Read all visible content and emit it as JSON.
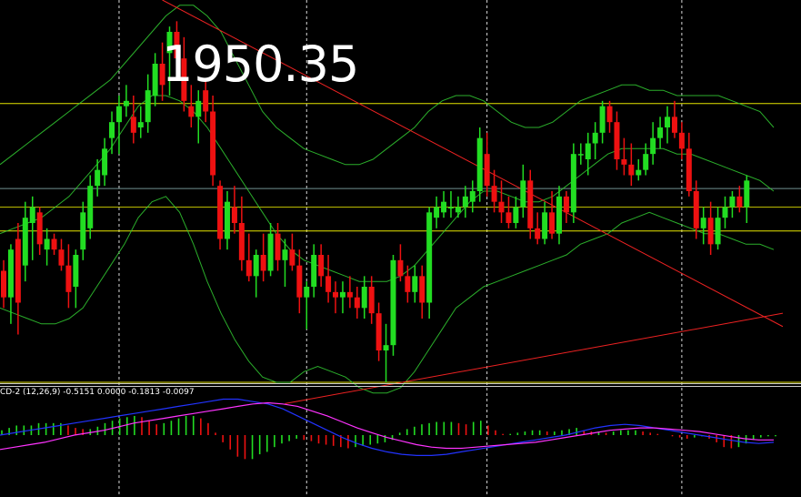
{
  "price_label": "1950.35",
  "indicator_label": "CD-2 (12,26,9) -0.5151 0.0000 -0.1813 -0.0097",
  "colors": {
    "background": "#000000",
    "bull": "#22dd22",
    "bear": "#ee1111",
    "band": "#33cc33",
    "level": "#e6e600",
    "pivot": "#6f8f8f",
    "trend": "#ee2222",
    "macd_main": "#2233ff",
    "macd_signal": "#ff33ff",
    "vgrid": "#ffffff",
    "separator": "#cccccc"
  },
  "chart_data": {
    "type": "candlestick",
    "title": "",
    "grid": false,
    "vertical_gridlines": true,
    "price_range": [
      1884,
      1956
    ],
    "candles": [
      {
        "o": 1905,
        "h": 1907,
        "l": 1898,
        "c": 1900
      },
      {
        "o": 1900,
        "h": 1910,
        "l": 1895,
        "c": 1909
      },
      {
        "o": 1911,
        "h": 1914,
        "l": 1893,
        "c": 1899
      },
      {
        "o": 1906,
        "h": 1918,
        "l": 1903,
        "c": 1915
      },
      {
        "o": 1914,
        "h": 1919,
        "l": 1907,
        "c": 1917
      },
      {
        "o": 1916,
        "h": 1917,
        "l": 1908,
        "c": 1910
      },
      {
        "o": 1909,
        "h": 1913,
        "l": 1906,
        "c": 1911
      },
      {
        "o": 1911,
        "h": 1912,
        "l": 1908,
        "c": 1909
      },
      {
        "o": 1909,
        "h": 1911,
        "l": 1905,
        "c": 1906
      },
      {
        "o": 1906,
        "h": 1910,
        "l": 1898,
        "c": 1901
      },
      {
        "o": 1902,
        "h": 1909,
        "l": 1898,
        "c": 1908
      },
      {
        "o": 1909,
        "h": 1918,
        "l": 1907,
        "c": 1916
      },
      {
        "o": 1913,
        "h": 1923,
        "l": 1911,
        "c": 1921
      },
      {
        "o": 1921,
        "h": 1926,
        "l": 1919,
        "c": 1924
      },
      {
        "o": 1923,
        "h": 1930,
        "l": 1921,
        "c": 1928
      },
      {
        "o": 1930,
        "h": 1935,
        "l": 1927,
        "c": 1933
      },
      {
        "o": 1933,
        "h": 1938,
        "l": 1927,
        "c": 1936
      },
      {
        "o": 1936,
        "h": 1940,
        "l": 1934,
        "c": 1937
      },
      {
        "o": 1934,
        "h": 1938,
        "l": 1929,
        "c": 1931
      },
      {
        "o": 1932,
        "h": 1936,
        "l": 1930,
        "c": 1933
      },
      {
        "o": 1933,
        "h": 1942,
        "l": 1931,
        "c": 1939
      },
      {
        "o": 1938,
        "h": 1946,
        "l": 1936,
        "c": 1944
      },
      {
        "o": 1944,
        "h": 1948,
        "l": 1937,
        "c": 1940
      },
      {
        "o": 1946,
        "h": 1951,
        "l": 1938,
        "c": 1950
      },
      {
        "o": 1950,
        "h": 1952,
        "l": 1943,
        "c": 1945
      },
      {
        "o": 1945,
        "h": 1949,
        "l": 1935,
        "c": 1937
      },
      {
        "o": 1936,
        "h": 1940,
        "l": 1932,
        "c": 1934
      },
      {
        "o": 1934,
        "h": 1939,
        "l": 1929,
        "c": 1937
      },
      {
        "o": 1939,
        "h": 1941,
        "l": 1933,
        "c": 1935
      },
      {
        "o": 1935,
        "h": 1938,
        "l": 1921,
        "c": 1923
      },
      {
        "o": 1921,
        "h": 1922,
        "l": 1909,
        "c": 1911
      },
      {
        "o": 1911,
        "h": 1920,
        "l": 1909,
        "c": 1918
      },
      {
        "o": 1917,
        "h": 1921,
        "l": 1912,
        "c": 1914
      },
      {
        "o": 1914,
        "h": 1919,
        "l": 1905,
        "c": 1907
      },
      {
        "o": 1907,
        "h": 1912,
        "l": 1903,
        "c": 1904
      },
      {
        "o": 1904,
        "h": 1909,
        "l": 1900,
        "c": 1908
      },
      {
        "o": 1908,
        "h": 1912,
        "l": 1903,
        "c": 1905
      },
      {
        "o": 1905,
        "h": 1914,
        "l": 1904,
        "c": 1912
      },
      {
        "o": 1912,
        "h": 1914,
        "l": 1905,
        "c": 1907
      },
      {
        "o": 1907,
        "h": 1911,
        "l": 1902,
        "c": 1909
      },
      {
        "o": 1909,
        "h": 1912,
        "l": 1905,
        "c": 1906
      },
      {
        "o": 1906,
        "h": 1909,
        "l": 1897,
        "c": 1900
      },
      {
        "o": 1900,
        "h": 1903,
        "l": 1894,
        "c": 1902
      },
      {
        "o": 1902,
        "h": 1910,
        "l": 1900,
        "c": 1908
      },
      {
        "o": 1908,
        "h": 1910,
        "l": 1902,
        "c": 1904
      },
      {
        "o": 1904,
        "h": 1908,
        "l": 1899,
        "c": 1901
      },
      {
        "o": 1901,
        "h": 1903,
        "l": 1897,
        "c": 1900
      },
      {
        "o": 1900,
        "h": 1903,
        "l": 1897,
        "c": 1901
      },
      {
        "o": 1901,
        "h": 1904,
        "l": 1898,
        "c": 1900
      },
      {
        "o": 1900,
        "h": 1902,
        "l": 1896,
        "c": 1898
      },
      {
        "o": 1898,
        "h": 1904,
        "l": 1896,
        "c": 1902
      },
      {
        "o": 1902,
        "h": 1904,
        "l": 1895,
        "c": 1897
      },
      {
        "o": 1897,
        "h": 1899,
        "l": 1888,
        "c": 1890
      },
      {
        "o": 1890,
        "h": 1895,
        "l": 1884,
        "c": 1891
      },
      {
        "o": 1891,
        "h": 1908,
        "l": 1889,
        "c": 1907
      },
      {
        "o": 1907,
        "h": 1910,
        "l": 1903,
        "c": 1904
      },
      {
        "o": 1904,
        "h": 1906,
        "l": 1899,
        "c": 1901
      },
      {
        "o": 1901,
        "h": 1906,
        "l": 1899,
        "c": 1904
      },
      {
        "o": 1904,
        "h": 1906,
        "l": 1896,
        "c": 1899
      },
      {
        "o": 1899,
        "h": 1917,
        "l": 1896,
        "c": 1916
      },
      {
        "o": 1915,
        "h": 1919,
        "l": 1913,
        "c": 1917
      },
      {
        "o": 1916,
        "h": 1920,
        "l": 1915,
        "c": 1918
      },
      {
        "o": 1917,
        "h": 1920,
        "l": 1915,
        "c": 1917
      },
      {
        "o": 1916,
        "h": 1919,
        "l": 1915,
        "c": 1917
      },
      {
        "o": 1917,
        "h": 1921,
        "l": 1915,
        "c": 1919
      },
      {
        "o": 1918,
        "h": 1922,
        "l": 1916,
        "c": 1920
      },
      {
        "o": 1920,
        "h": 1932,
        "l": 1918,
        "c": 1930
      },
      {
        "o": 1927,
        "h": 1931,
        "l": 1919,
        "c": 1921
      },
      {
        "o": 1921,
        "h": 1924,
        "l": 1916,
        "c": 1918
      },
      {
        "o": 1918,
        "h": 1922,
        "l": 1914,
        "c": 1916
      },
      {
        "o": 1916,
        "h": 1919,
        "l": 1913,
        "c": 1914
      },
      {
        "o": 1914,
        "h": 1919,
        "l": 1913,
        "c": 1917
      },
      {
        "o": 1917,
        "h": 1925,
        "l": 1915,
        "c": 1922
      },
      {
        "o": 1922,
        "h": 1924,
        "l": 1911,
        "c": 1913
      },
      {
        "o": 1913,
        "h": 1916,
        "l": 1910,
        "c": 1911
      },
      {
        "o": 1911,
        "h": 1918,
        "l": 1910,
        "c": 1916
      },
      {
        "o": 1916,
        "h": 1920,
        "l": 1911,
        "c": 1912
      },
      {
        "o": 1912,
        "h": 1921,
        "l": 1910,
        "c": 1919
      },
      {
        "o": 1919,
        "h": 1920,
        "l": 1914,
        "c": 1916
      },
      {
        "o": 1916,
        "h": 1929,
        "l": 1914,
        "c": 1927
      },
      {
        "o": 1927,
        "h": 1929,
        "l": 1925,
        "c": 1927
      },
      {
        "o": 1926,
        "h": 1931,
        "l": 1923,
        "c": 1929
      },
      {
        "o": 1929,
        "h": 1933,
        "l": 1926,
        "c": 1931
      },
      {
        "o": 1931,
        "h": 1937,
        "l": 1929,
        "c": 1936
      },
      {
        "o": 1936,
        "h": 1937,
        "l": 1931,
        "c": 1933
      },
      {
        "o": 1933,
        "h": 1935,
        "l": 1924,
        "c": 1926
      },
      {
        "o": 1926,
        "h": 1930,
        "l": 1923,
        "c": 1925
      },
      {
        "o": 1925,
        "h": 1929,
        "l": 1921,
        "c": 1923
      },
      {
        "o": 1923,
        "h": 1926,
        "l": 1922,
        "c": 1924
      },
      {
        "o": 1924,
        "h": 1929,
        "l": 1923,
        "c": 1927
      },
      {
        "o": 1927,
        "h": 1933,
        "l": 1925,
        "c": 1930
      },
      {
        "o": 1930,
        "h": 1934,
        "l": 1928,
        "c": 1932
      },
      {
        "o": 1932,
        "h": 1936,
        "l": 1929,
        "c": 1934
      },
      {
        "o": 1934,
        "h": 1937,
        "l": 1930,
        "c": 1931
      },
      {
        "o": 1931,
        "h": 1933,
        "l": 1926,
        "c": 1928
      },
      {
        "o": 1928,
        "h": 1931,
        "l": 1919,
        "c": 1920
      },
      {
        "o": 1920,
        "h": 1922,
        "l": 1911,
        "c": 1913
      },
      {
        "o": 1913,
        "h": 1917,
        "l": 1910,
        "c": 1915
      },
      {
        "o": 1915,
        "h": 1918,
        "l": 1908,
        "c": 1910
      },
      {
        "o": 1910,
        "h": 1917,
        "l": 1909,
        "c": 1915
      },
      {
        "o": 1915,
        "h": 1919,
        "l": 1913,
        "c": 1917
      },
      {
        "o": 1917,
        "h": 1920,
        "l": 1915,
        "c": 1919
      },
      {
        "o": 1919,
        "h": 1921,
        "l": 1916,
        "c": 1917
      },
      {
        "o": 1917,
        "h": 1923,
        "l": 1914,
        "c": 1922
      }
    ],
    "bollinger_bands": {
      "upper": [
        1925,
        1927,
        1929,
        1931,
        1933,
        1935,
        1937,
        1939,
        1941,
        1944,
        1947,
        1950,
        1953,
        1955,
        1955,
        1953,
        1950,
        1945,
        1940,
        1935,
        1932,
        1930,
        1928,
        1927,
        1926,
        1925,
        1925,
        1926,
        1928,
        1930,
        1932,
        1935,
        1937,
        1938,
        1938,
        1937,
        1935,
        1933,
        1932,
        1932,
        1933,
        1935,
        1937,
        1938,
        1939,
        1940,
        1940,
        1939,
        1939,
        1938,
        1938,
        1938,
        1938,
        1937,
        1936,
        1935,
        1932
      ],
      "middle": [
        1912,
        1913,
        1914,
        1915,
        1917,
        1919,
        1922,
        1925,
        1928,
        1932,
        1936,
        1938,
        1938,
        1937,
        1935,
        1932,
        1928,
        1924,
        1920,
        1916,
        1912,
        1909,
        1907,
        1906,
        1905,
        1904,
        1903,
        1903,
        1903,
        1904,
        1906,
        1909,
        1912,
        1915,
        1918,
        1920,
        1920,
        1919,
        1918,
        1918,
        1919,
        1921,
        1923,
        1925,
        1927,
        1928,
        1928,
        1928,
        1928,
        1927,
        1927,
        1926,
        1925,
        1924,
        1923,
        1922,
        1920
      ],
      "lower": [
        1898,
        1897,
        1896,
        1895,
        1895,
        1896,
        1898,
        1902,
        1906,
        1910,
        1915,
        1918,
        1919,
        1916,
        1910,
        1903,
        1897,
        1892,
        1888,
        1885,
        1884,
        1884,
        1886,
        1887,
        1886,
        1885,
        1883,
        1882,
        1882,
        1883,
        1886,
        1890,
        1894,
        1898,
        1900,
        1902,
        1903,
        1904,
        1905,
        1906,
        1907,
        1908,
        1910,
        1911,
        1912,
        1914,
        1915,
        1916,
        1915,
        1914,
        1913,
        1912,
        1912,
        1911,
        1910,
        1910,
        1909
      ]
    },
    "horizontal_levels": [
      1936.5,
      1912.5
    ],
    "pivot_levels": [
      1920.5,
      1917
    ],
    "trendlines": [
      {
        "from": [
          22,
          1956
        ],
        "to": [
          108,
          1894.5
        ]
      },
      {
        "from": [
          39,
          1880
        ],
        "to": [
          108,
          1897
        ]
      }
    ],
    "vertical_markers": [
      16,
      42,
      67,
      94
    ],
    "macd": {
      "label": "CD-2 (12,26,9)",
      "values": [
        -0.5151,
        0.0,
        -0.1813,
        -0.0097
      ],
      "histogram": [
        0.2,
        0.3,
        0.4,
        0.4,
        0.4,
        0.5,
        0.5,
        0.5,
        0.5,
        0.4,
        0.3,
        0.25,
        0.25,
        0.35,
        0.5,
        0.6,
        0.7,
        0.75,
        0.8,
        0.75,
        0.6,
        0.45,
        0.5,
        0.6,
        0.7,
        0.8,
        0.8,
        0.7,
        0.5,
        0.1,
        -0.3,
        -0.6,
        -0.9,
        -1.0,
        -1.0,
        -0.8,
        -0.7,
        -0.5,
        -0.35,
        -0.25,
        -0.15,
        -0.2,
        -0.25,
        -0.35,
        -0.4,
        -0.45,
        -0.5,
        -0.55,
        -0.5,
        -0.45,
        -0.4,
        -0.35,
        -0.3,
        -0.2,
        0.1,
        0.25,
        0.35,
        0.45,
        0.5,
        0.55,
        0.55,
        0.55,
        0.5,
        0.45,
        0.55,
        0.6,
        0.4,
        0.2,
        0.05,
        0.05,
        0.1,
        0.15,
        0.2,
        0.2,
        0.15,
        0.15,
        0.2,
        0.25,
        0.3,
        0.2,
        0.15,
        0.15,
        0.1,
        0.15,
        0.2,
        0.2,
        0.2,
        0.15,
        0.1,
        0.05,
        0.0,
        -0.05,
        -0.1,
        -0.15,
        -0.1,
        -0.05,
        -0.15,
        -0.3,
        -0.5,
        -0.55,
        -0.5,
        -0.35,
        -0.2,
        -0.1,
        -0.05,
        -0.05
      ],
      "main": [
        0.0,
        0.1,
        0.2,
        0.3,
        0.4,
        0.5,
        0.6,
        0.7,
        0.8,
        0.9,
        1.0,
        1.1,
        1.2,
        1.3,
        1.4,
        1.5,
        1.5,
        1.4,
        1.3,
        1.1,
        0.8,
        0.5,
        0.2,
        -0.1,
        -0.35,
        -0.55,
        -0.7,
        -0.8,
        -0.85,
        -0.85,
        -0.8,
        -0.7,
        -0.6,
        -0.5,
        -0.4,
        -0.3,
        -0.2,
        -0.1,
        0.0,
        0.15,
        0.3,
        0.4,
        0.45,
        0.4,
        0.3,
        0.2,
        0.1,
        0.0,
        -0.1,
        -0.2,
        -0.3,
        -0.35,
        -0.3
      ],
      "signal": [
        -0.6,
        -0.5,
        -0.4,
        -0.3,
        -0.15,
        0.0,
        0.1,
        0.2,
        0.35,
        0.5,
        0.6,
        0.7,
        0.8,
        0.9,
        1.0,
        1.1,
        1.2,
        1.3,
        1.35,
        1.3,
        1.2,
        1.0,
        0.8,
        0.55,
        0.3,
        0.1,
        -0.1,
        -0.25,
        -0.4,
        -0.5,
        -0.55,
        -0.55,
        -0.5,
        -0.45,
        -0.4,
        -0.35,
        -0.3,
        -0.2,
        -0.1,
        0.0,
        0.1,
        0.2,
        0.25,
        0.3,
        0.3,
        0.25,
        0.2,
        0.15,
        0.05,
        -0.05,
        -0.15,
        -0.2,
        -0.2
      ],
      "range": [
        -1.9,
        1.9
      ]
    }
  }
}
